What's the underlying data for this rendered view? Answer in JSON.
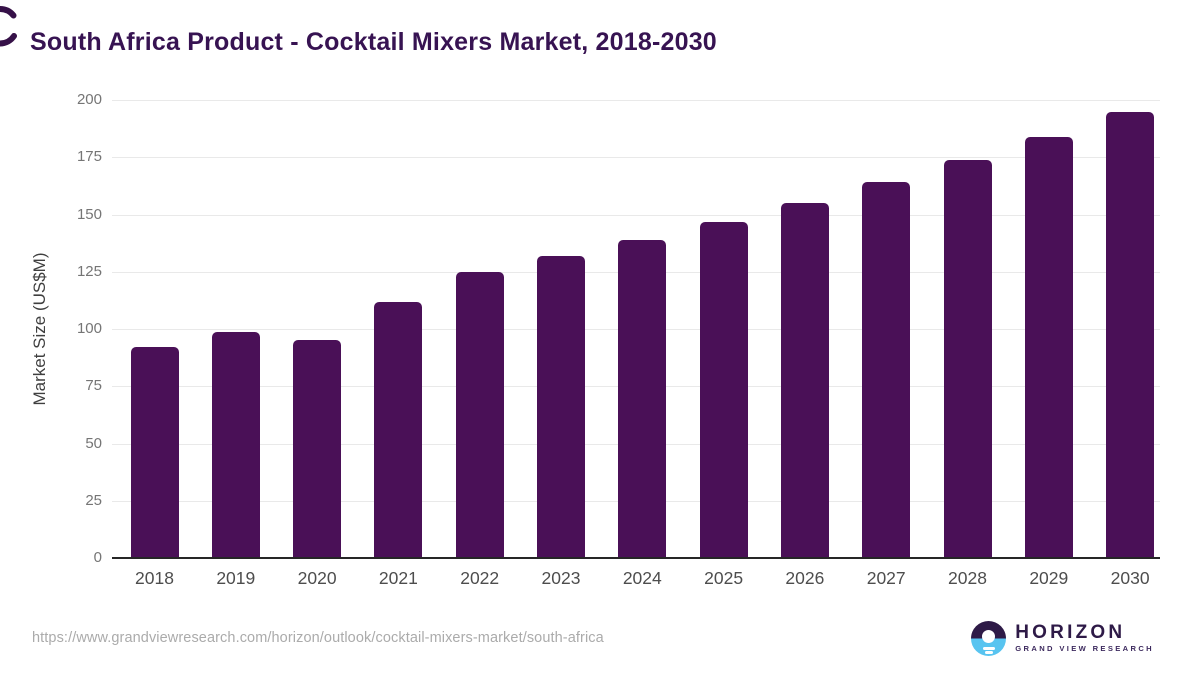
{
  "title": "South Africa Product - Cocktail Mixers Market, 2018-2030",
  "source_url": "https://www.grandviewresearch.com/horizon/outlook/cocktail-mixers-market/south-africa",
  "logo": {
    "name": "HORIZON",
    "subtitle": "GRAND VIEW RESEARCH",
    "icon": "horizon-sun-circle-icon"
  },
  "colors": {
    "bar": "#4a1057",
    "title_text": "#371352",
    "axis_line": "#262626",
    "gridline": "#e9e9e9",
    "y_tick_text": "#757575",
    "x_tick_text": "#4d4d4d",
    "url_text": "#ababab",
    "logo_purple": "#2e1a47",
    "logo_blue": "#58c4f0"
  },
  "chart_data": {
    "type": "bar",
    "title": "South Africa Product - Cocktail Mixers Market, 2018-2030",
    "categories": [
      "2018",
      "2019",
      "2020",
      "2021",
      "2022",
      "2023",
      "2024",
      "2025",
      "2026",
      "2027",
      "2028",
      "2029",
      "2030"
    ],
    "values": [
      92.3,
      98.9,
      95.2,
      111.9,
      124.9,
      131.7,
      138.8,
      146.6,
      154.9,
      164.4,
      173.8,
      183.7,
      194.9
    ],
    "xlabel": "",
    "ylabel": "Market Size (US$M)",
    "ylim": [
      0,
      200
    ],
    "yticks": [
      0,
      25,
      50,
      75,
      100,
      125,
      150,
      175,
      200
    ],
    "grid": true,
    "legend": "none",
    "bar_color": "#4a1057"
  }
}
